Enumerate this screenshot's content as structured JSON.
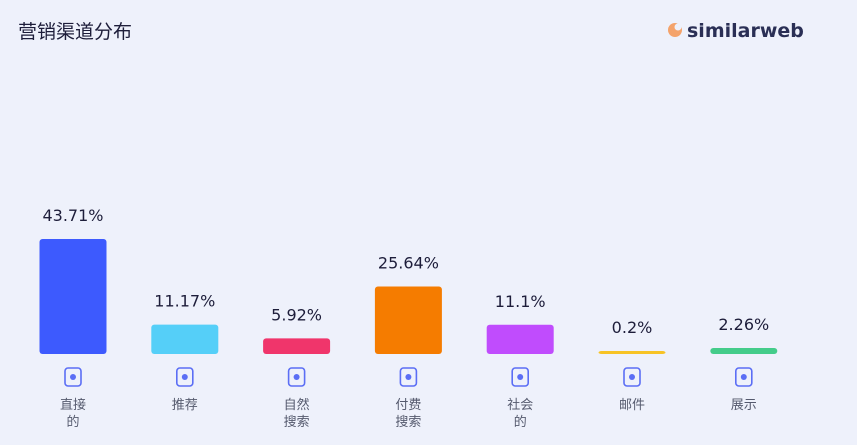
{
  "chart_data": {
    "type": "bar",
    "title": "营销渠道分布",
    "brand": "similarweb",
    "categories": [
      [
        "直接",
        "的"
      ],
      [
        "推荐"
      ],
      [
        "自然",
        "搜索"
      ],
      [
        "付费",
        "搜索"
      ],
      [
        "社会",
        "的"
      ],
      [
        "邮件"
      ],
      [
        "展示"
      ]
    ],
    "values": [
      43.71,
      11.17,
      5.92,
      25.64,
      11.1,
      0.2,
      2.26
    ],
    "value_labels": [
      "43.71%",
      "11.17%",
      "5.92%",
      "25.64%",
      "11.1%",
      "0.2%",
      "2.26%"
    ],
    "colors": [
      "#3d5afe",
      "#55cff8",
      "#f0356b",
      "#f57c00",
      "#c04cfd",
      "#f7c325",
      "#44cc8a"
    ]
  }
}
